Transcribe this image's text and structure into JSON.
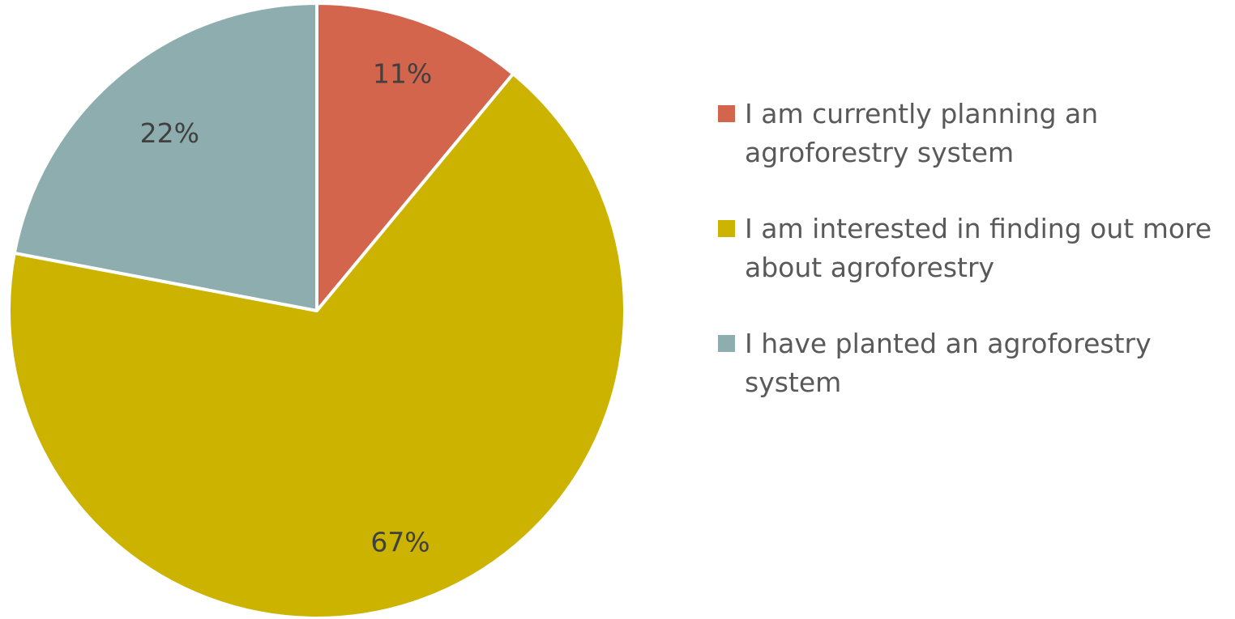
{
  "chart_data": {
    "type": "pie",
    "categories": [
      "I am currently planning an agroforestry system",
      "I am interested in finding out more about agroforestry",
      "I have planted an agroforestry system"
    ],
    "values": [
      11,
      67,
      22
    ],
    "value_labels": [
      "11%",
      "67%",
      "22%"
    ],
    "colors": [
      "#D2654C",
      "#CBB300",
      "#8DADAE"
    ],
    "start_angle_deg": 0,
    "direction": "clockwise",
    "legend_position": "right"
  }
}
